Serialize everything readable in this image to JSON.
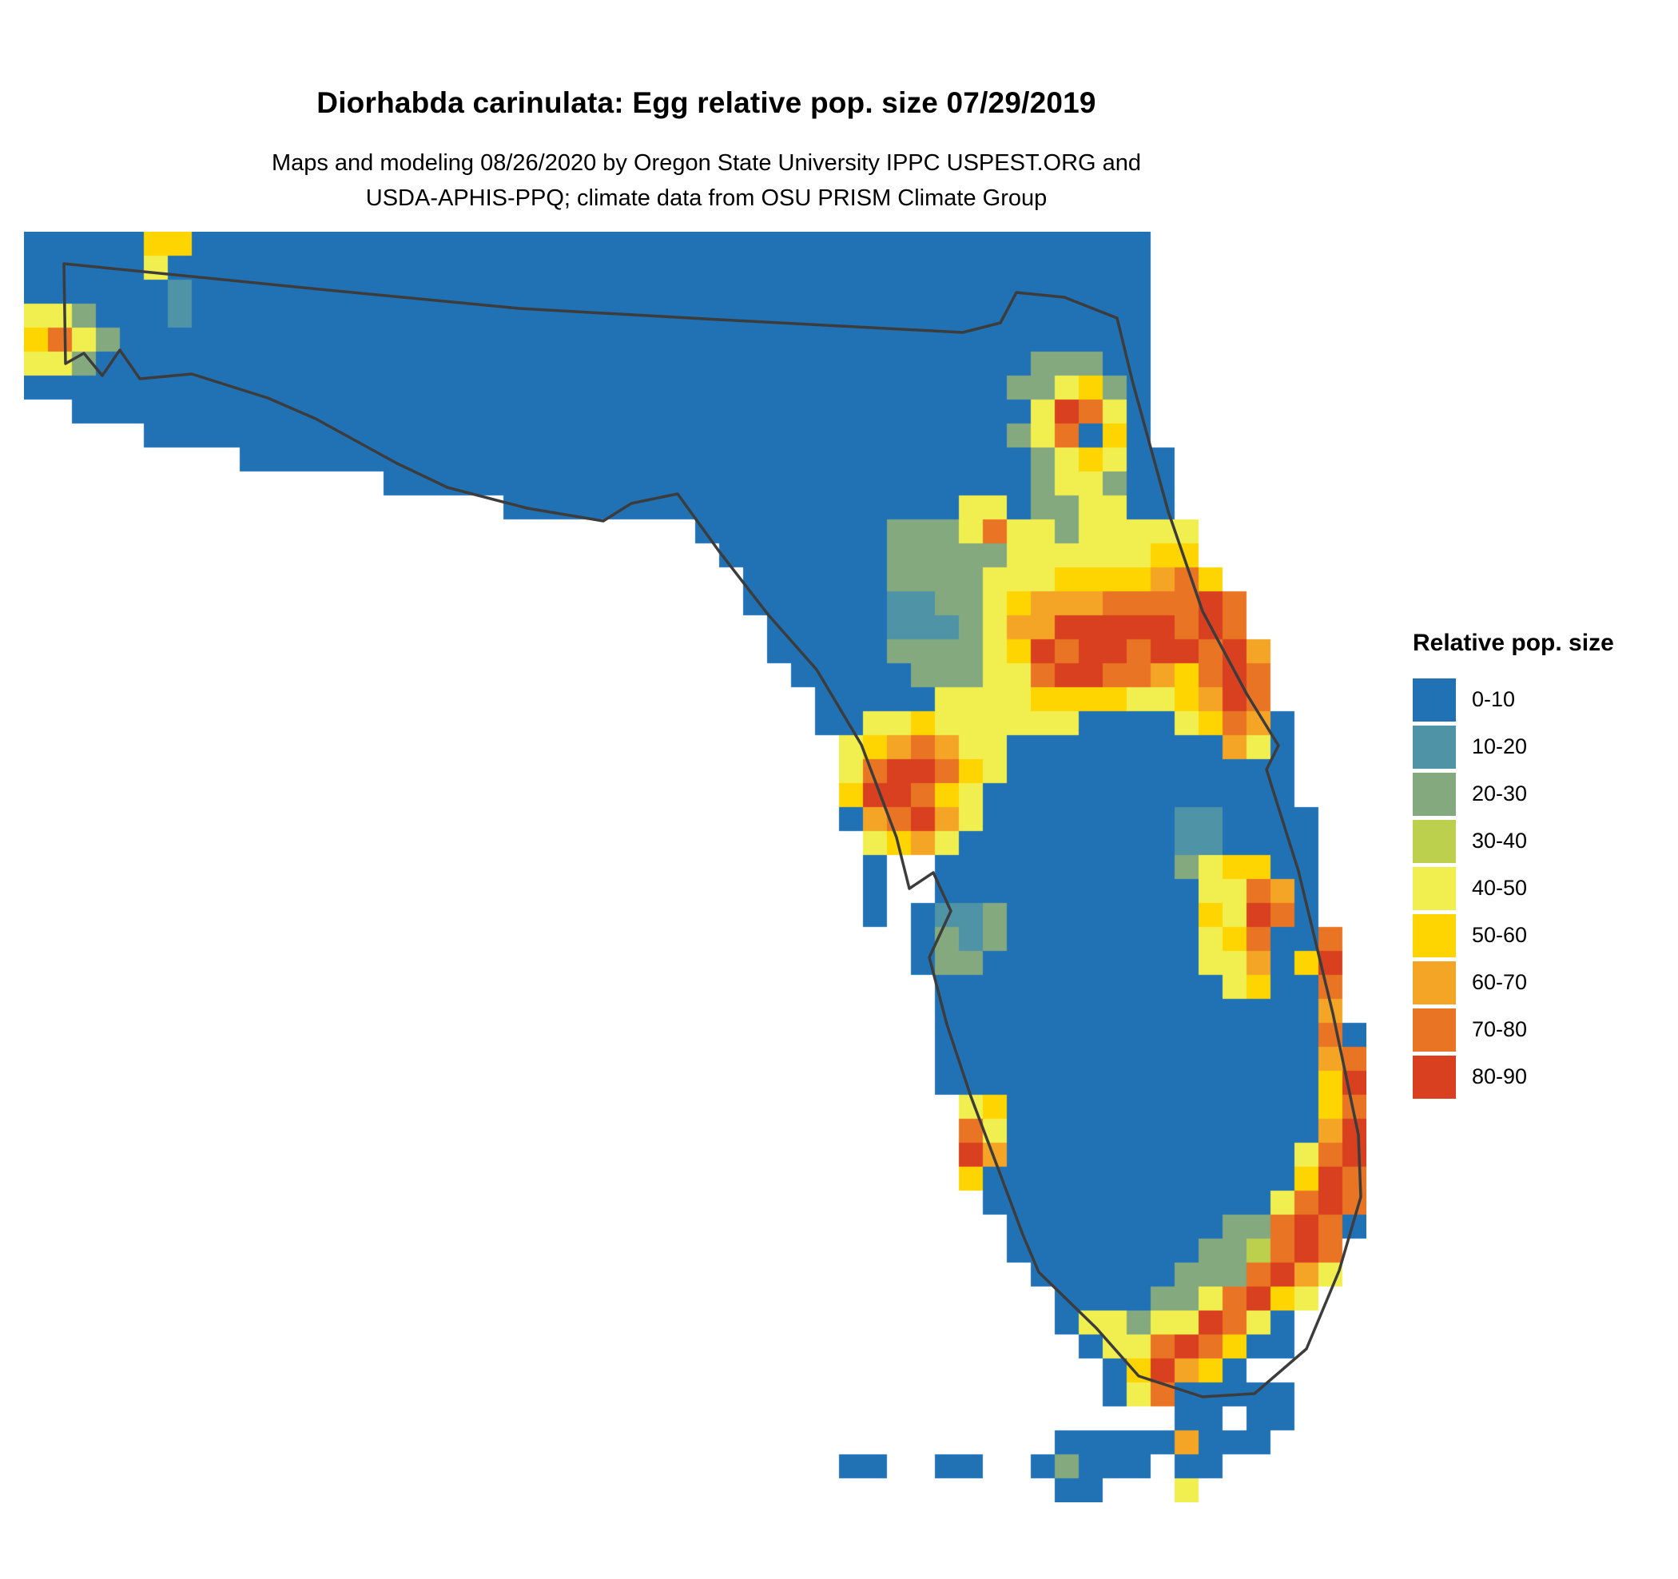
{
  "title": "Diorhabda carinulata: Egg relative pop. size 07/29/2019",
  "subtitle_line1": "Maps and modeling 08/26/2020 by Oregon State University IPPC USPEST.ORG and",
  "subtitle_line2": "USDA-APHIS-PPQ; climate data from OSU PRISM Climate Group",
  "legend": {
    "title": "Relative pop. size",
    "items": [
      {
        "label": "0-10",
        "color": "#2171b5"
      },
      {
        "label": "10-20",
        "color": "#4e93a6"
      },
      {
        "label": "20-30",
        "color": "#84a97f"
      },
      {
        "label": "30-40",
        "color": "#bdd04e"
      },
      {
        "label": "40-50",
        "color": "#f0ef4f"
      },
      {
        "label": "50-60",
        "color": "#fed500"
      },
      {
        "label": "60-70",
        "color": "#f5a525"
      },
      {
        "label": "70-80",
        "color": "#e97424"
      },
      {
        "label": "80-90",
        "color": "#d8401f"
      }
    ]
  },
  "map": {
    "region": "Florida, USA",
    "cell_size": 30,
    "palette": {
      "a": "#2171b5",
      "b": "#4e93a6",
      "c": "#84a97f",
      "d": "#bdd04e",
      "e": "#f0ef4f",
      "f": "#fed500",
      "g": "#f5a525",
      "h": "#e97424",
      "i": "#d8401f"
    },
    "grid": [
      "5a2f40a9.",
      "5a1e41a9.",
      "6a1b40a9.",
      "2e1c3a1b40a9.",
      "1f1h1e1c43a9.",
      "2e1c39a3c2a9.",
      "41a2c1e1f1c1a9.",
      "2.40a1e1i1h1e1a9.",
      "5.36a1c1e1h1a1f1a9.",
      "9.33a1c1e1f1e2a8.",
      "15.27a1c2e1c2a8.",
      "20.19a2e1a2c2e2a8.",
      "28.8a3c1e1h2e1c5e7.",
      "29.7a5c6e2f7.",
      "30.6a4c3e4f1g1h1f6.",
      "30.6a2b2c1e1f3g4h1i1h5.",
      "31.5a3b1c1e2g5i1h1i1h5.",
      "31.5a4c1e1f1i1h2i1h2i1h1i1g4.",
      "32.5a3c2e1h2i2h1g1f1h1i1h4.",
      "33.5a4e4f2e1f1g1i1h4.",
      "33.2a2e1f6e4a1e1f1h1g1a3.",
      "34.1e1f1g1h1g2e9a1g1e1a3.",
      "34.1e1h2i1h1f1e12a3.",
      "34.1f2i1h1f1e13a3.",
      "34.1a1g1h1i1g1e8a2b4a2.",
      "35.1e1f1g1e9a2b4a2.",
      "35.1a2.10a1c1e2f2a2.",
      "35.1a2.11a2e1h1g1a2.",
      "35.1a1.1a2b1c8a1f1e1i1h1a2.",
      "37.1a1c1b1c8a1e1f1h2a1h1.",
      "37.1a2c9a2e1g1a1f1i1.",
      "38.12a1e1f2a1h1.",
      "38.16a1g1.",
      "38.16a1h1a",
      "38.16a1g1h",
      "38.16a1f1i",
      "39.1e1f13a1f1h",
      "39.1h1e13a1g1i",
      "39.1i1g12a1e1h1i",
      "39.1f13a1f1i1h",
      "40.12a1e1h1i1h",
      "41.9a2c1h1i1h1a",
      "41.8a2c1d1h1i1h1.",
      "42.6a3c1h1i1g1e1.",
      "43.4a2c1e1h1i1f1e2.",
      "43.1a2e1c2e1i1h1e1a3.",
      "44.1a2e1h1i1h1f2a3.",
      "45.1a1f1i1g1f1a5.",
      "45.1a1e1h5a3.",
      "48.2a1.2a3.",
      "43.5a1g3a4.",
      "34.2a2.2a2.1a1c3a1.2a6.",
      "43.2a3.1e7."
    ],
    "outline_color": "#3c3c3c",
    "outline": [
      [
        80,
        330
      ],
      [
        400,
        362
      ],
      [
        650,
        386
      ],
      [
        900,
        400
      ],
      [
        1090,
        410
      ],
      [
        1205,
        416
      ],
      [
        1252,
        404
      ],
      [
        1272,
        366
      ],
      [
        1332,
        372
      ],
      [
        1398,
        398
      ],
      [
        1418,
        480
      ],
      [
        1462,
        640
      ],
      [
        1505,
        765
      ],
      [
        1560,
        868
      ],
      [
        1600,
        933
      ],
      [
        1585,
        963
      ],
      [
        1625,
        1090
      ],
      [
        1668,
        1268
      ],
      [
        1700,
        1420
      ],
      [
        1703,
        1498
      ],
      [
        1676,
        1590
      ],
      [
        1635,
        1688
      ],
      [
        1570,
        1744
      ],
      [
        1505,
        1748
      ],
      [
        1425,
        1722
      ],
      [
        1372,
        1662
      ],
      [
        1300,
        1592
      ],
      [
        1280,
        1545
      ],
      [
        1252,
        1470
      ],
      [
        1215,
        1372
      ],
      [
        1185,
        1282
      ],
      [
        1163,
        1198
      ],
      [
        1190,
        1140
      ],
      [
        1168,
        1092
      ],
      [
        1138,
        1112
      ],
      [
        1122,
        1048
      ],
      [
        1078,
        932
      ],
      [
        1022,
        838
      ],
      [
        962,
        770
      ],
      [
        900,
        690
      ],
      [
        848,
        618
      ],
      [
        790,
        630
      ],
      [
        755,
        652
      ],
      [
        660,
        636
      ],
      [
        560,
        610
      ],
      [
        497,
        580
      ],
      [
        395,
        524
      ],
      [
        335,
        498
      ],
      [
        240,
        468
      ],
      [
        175,
        474
      ],
      [
        150,
        438
      ],
      [
        128,
        470
      ],
      [
        105,
        442
      ],
      [
        82,
        455
      ]
    ]
  }
}
